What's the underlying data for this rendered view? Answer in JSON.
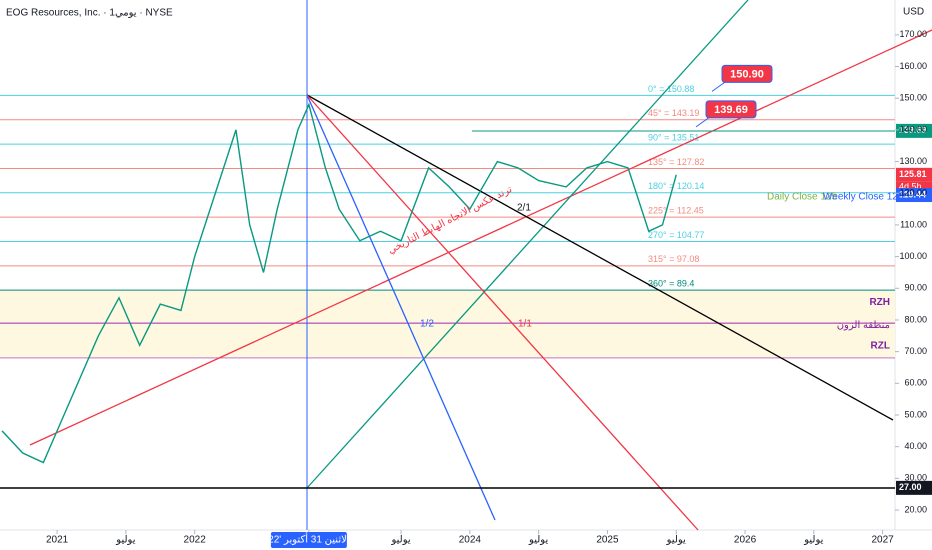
{
  "header": {
    "title": "EOG Resources, Inc. · 1يومي · NYSE",
    "currency": "USD"
  },
  "chart_data": {
    "type": "line",
    "x": [
      2020.6,
      2020.75,
      2020.9,
      2021.0,
      2021.15,
      2021.3,
      2021.45,
      2021.6,
      2021.75,
      2021.9,
      2022.0,
      2022.15,
      2022.3,
      2022.4,
      2022.5,
      2022.6,
      2022.75,
      2022.83,
      2022.95,
      2023.05,
      2023.2,
      2023.35,
      2023.5,
      2023.7,
      2023.85,
      2024.0,
      2024.2,
      2024.35,
      2024.5,
      2024.7,
      2024.85,
      2025.0,
      2025.15,
      2025.3,
      2025.4,
      2025.5
    ],
    "series": [
      {
        "name": "EOG",
        "color": "#089981",
        "values": [
          45,
          38,
          35,
          45,
          60,
          75,
          87,
          72,
          85,
          83,
          100,
          120,
          140,
          110,
          95,
          115,
          140,
          148,
          128,
          115,
          105,
          108,
          105,
          128,
          122,
          115,
          130,
          128,
          124,
          122,
          128,
          130,
          128,
          108,
          110,
          125.81
        ]
      }
    ],
    "xlim": [
      2020.585,
      2027.09
    ],
    "ylim": [
      13.7,
      181
    ],
    "xticks": [
      2021,
      {
        "value": 2021.5,
        "label": "يوليو"
      },
      2022,
      {
        "value": 2022.83,
        "label": "الاثنين 31 أكتوبر '22"
      },
      {
        "value": 2023.5,
        "label": "يوليو"
      },
      2024,
      {
        "value": 2024.5,
        "label": "يوليو"
      },
      2025,
      {
        "value": 2025.5,
        "label": "يوليو"
      },
      2026,
      {
        "value": 2026.5,
        "label": "يوليو"
      },
      2027
    ],
    "yticks": [
      {
        "value": 20,
        "label": "20.00"
      },
      {
        "value": 30,
        "label": "30.00"
      },
      {
        "value": 40,
        "label": "40.00"
      },
      {
        "value": 50,
        "label": "50.00"
      },
      {
        "value": 60,
        "label": "60.00"
      },
      {
        "value": 70,
        "label": "70.00"
      },
      {
        "value": 80,
        "label": "80.00"
      },
      {
        "value": 90,
        "label": "90.00"
      },
      {
        "value": 100,
        "label": "100.00"
      },
      {
        "value": 110,
        "label": "110.00"
      },
      {
        "value": 120,
        "label": "120.00"
      },
      {
        "value": 130,
        "label": "130.00"
      },
      {
        "value": 140,
        "label": "140.00"
      },
      {
        "value": 150,
        "label": "150.00"
      },
      {
        "value": 160,
        "label": "160.00"
      },
      {
        "value": 170,
        "label": "170.00"
      }
    ],
    "levels": [
      {
        "value": 150.88,
        "label": "0° = 150.88",
        "color": "#4dd0e1"
      },
      {
        "value": 143.19,
        "label": "45° = 143.19",
        "color": "#f28b82"
      },
      {
        "value": 135.51,
        "label": "90° = 135.51",
        "color": "#4dd0e1"
      },
      {
        "value": 127.82,
        "label": "135° = 127.82",
        "color": "#f28b82"
      },
      {
        "value": 120.14,
        "label": "180° = 120.14",
        "color": "#4dd0e1"
      },
      {
        "value": 112.45,
        "label": "225° = 112.45",
        "color": "#f28b82"
      },
      {
        "value": 104.77,
        "label": "270° = 104.77",
        "color": "#4dd0e1"
      },
      {
        "value": 97.08,
        "label": "315° = 97.08",
        "color": "#f28b82"
      },
      {
        "value": 89.4,
        "label": "360° = 89.4",
        "color": "#00897b"
      }
    ],
    "price_tags": [
      {
        "value": 139.69,
        "label": "139.69",
        "color": "#089981"
      },
      {
        "value": 125.81,
        "label": "125.81",
        "color": "#f23645"
      },
      {
        "value": 119.44,
        "label": "119.44",
        "color": "#2962ff"
      },
      {
        "value": 27,
        "label": "27.00",
        "color": "#131722"
      }
    ],
    "countdown": "4d 5h",
    "callouts": [
      {
        "value": 150.9,
        "label": "150.90"
      },
      {
        "value": 139.69,
        "label": "139.69"
      }
    ],
    "zone": {
      "top": 89.4,
      "mid": 79,
      "bottom": 68,
      "top_label": "RZH",
      "mid_label": "منطقة الزون",
      "bottom_label": "RZL"
    },
    "annotations": {
      "trend": "ترند عكس الاتجاه الهابط التاريخي",
      "half": "1/2",
      "one": "1/1",
      "two": "2/1",
      "daily": "Daily Close 125",
      "weekly": "Weekly Close 125"
    }
  }
}
